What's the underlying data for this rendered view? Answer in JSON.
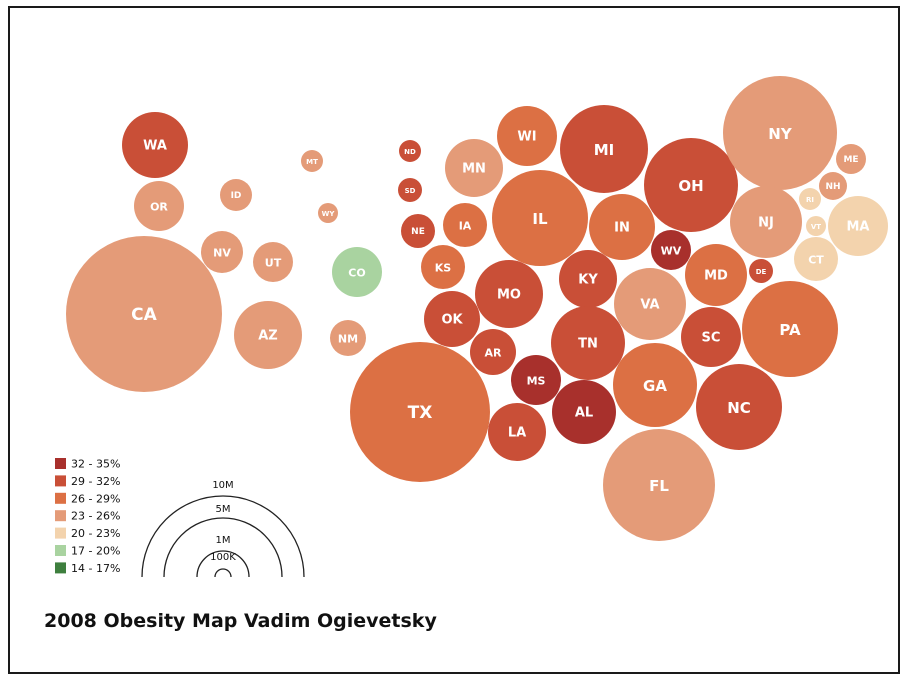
{
  "caption": "2008 Obesity Map Vadim Ogievetsky",
  "colors": {
    "c1": "#a8302c",
    "c2": "#c94f37",
    "c3": "#dc7044",
    "c4": "#e49b78",
    "c5": "#f3d3ad",
    "c6": "#a9d3a0",
    "c7": "#3e7f3e"
  },
  "legend": [
    {
      "label": "32 - 35%",
      "color": "c1"
    },
    {
      "label": "29 - 32%",
      "color": "c2"
    },
    {
      "label": "26 - 29%",
      "color": "c3"
    },
    {
      "label": "23 - 26%",
      "color": "c4"
    },
    {
      "label": "20 - 23%",
      "color": "c5"
    },
    {
      "label": "17 - 20%",
      "color": "c6"
    },
    {
      "label": "14 - 17%",
      "color": "c7"
    }
  ],
  "scale_labels": [
    "10M",
    "5M",
    "1M",
    "100K"
  ],
  "states": [
    {
      "abbr": "WA",
      "color": "c2"
    },
    {
      "abbr": "OR",
      "color": "c4"
    },
    {
      "abbr": "CA",
      "color": "c4"
    },
    {
      "abbr": "ID",
      "color": "c4"
    },
    {
      "abbr": "NV",
      "color": "c4"
    },
    {
      "abbr": "UT",
      "color": "c4"
    },
    {
      "abbr": "AZ",
      "color": "c4"
    },
    {
      "abbr": "MT",
      "color": "c4"
    },
    {
      "abbr": "WY",
      "color": "c4"
    },
    {
      "abbr": "CO",
      "color": "c6"
    },
    {
      "abbr": "NM",
      "color": "c4"
    },
    {
      "abbr": "ND",
      "color": "c2"
    },
    {
      "abbr": "SD",
      "color": "c2"
    },
    {
      "abbr": "NE",
      "color": "c2"
    },
    {
      "abbr": "KS",
      "color": "c3"
    },
    {
      "abbr": "OK",
      "color": "c2"
    },
    {
      "abbr": "TX",
      "color": "c3"
    },
    {
      "abbr": "MN",
      "color": "c4"
    },
    {
      "abbr": "IA",
      "color": "c3"
    },
    {
      "abbr": "MO",
      "color": "c2"
    },
    {
      "abbr": "AR",
      "color": "c2"
    },
    {
      "abbr": "LA",
      "color": "c2"
    },
    {
      "abbr": "WI",
      "color": "c3"
    },
    {
      "abbr": "IL",
      "color": "c3"
    },
    {
      "abbr": "MS",
      "color": "c1"
    },
    {
      "abbr": "MI",
      "color": "c2"
    },
    {
      "abbr": "IN",
      "color": "c3"
    },
    {
      "abbr": "KY",
      "color": "c2"
    },
    {
      "abbr": "TN",
      "color": "c2"
    },
    {
      "abbr": "AL",
      "color": "c1"
    },
    {
      "abbr": "OH",
      "color": "c2"
    },
    {
      "abbr": "WV",
      "color": "c1"
    },
    {
      "abbr": "VA",
      "color": "c4"
    },
    {
      "abbr": "GA",
      "color": "c3"
    },
    {
      "abbr": "FL",
      "color": "c4"
    },
    {
      "abbr": "MD",
      "color": "c3"
    },
    {
      "abbr": "SC",
      "color": "c2"
    },
    {
      "abbr": "NC",
      "color": "c2"
    },
    {
      "abbr": "DE",
      "color": "c2"
    },
    {
      "abbr": "PA",
      "color": "c3"
    },
    {
      "abbr": "NY",
      "color": "c4"
    },
    {
      "abbr": "NJ",
      "color": "c4"
    },
    {
      "abbr": "CT",
      "color": "c5"
    },
    {
      "abbr": "RI",
      "color": "c5"
    },
    {
      "abbr": "VT",
      "color": "c5"
    },
    {
      "abbr": "MA",
      "color": "c5"
    },
    {
      "abbr": "NH",
      "color": "c4"
    },
    {
      "abbr": "ME",
      "color": "c4"
    }
  ]
}
